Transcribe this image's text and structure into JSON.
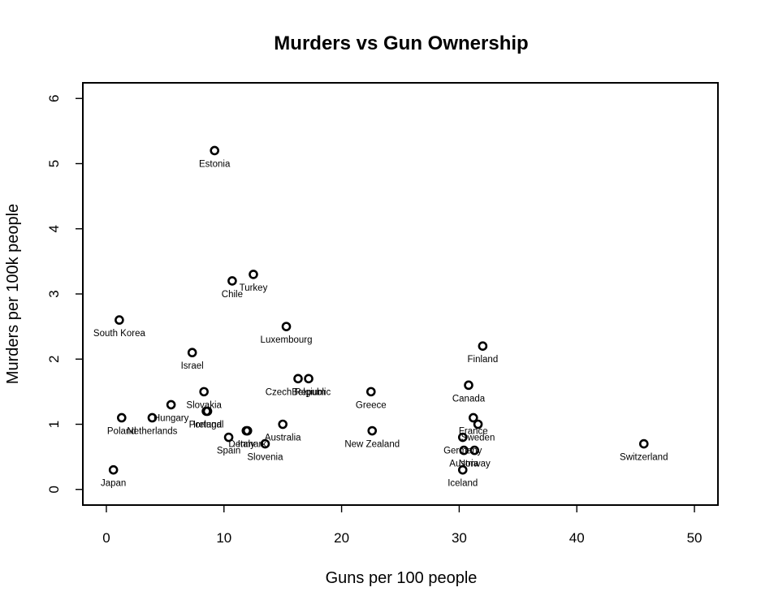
{
  "chart_data": {
    "type": "scatter",
    "title": "Murders vs Gun Ownership",
    "xlabel": "Guns per 100 people",
    "ylabel": "Murders per 100k people",
    "xlim": [
      -2,
      52
    ],
    "ylim": [
      -0.24,
      6.24
    ],
    "xticks": [
      0,
      10,
      20,
      30,
      40,
      50
    ],
    "yticks": [
      0,
      1,
      2,
      3,
      4,
      5,
      6
    ],
    "grid": false,
    "legend": "none",
    "points": [
      {
        "label": "Estonia",
        "x": 9.2,
        "y": 5.2
      },
      {
        "label": "Turkey",
        "x": 12.5,
        "y": 3.3
      },
      {
        "label": "Chile",
        "x": 10.7,
        "y": 3.2
      },
      {
        "label": "South Korea",
        "x": 1.1,
        "y": 2.6
      },
      {
        "label": "Luxembourg",
        "x": 15.3,
        "y": 2.5
      },
      {
        "label": "Finland",
        "x": 32.0,
        "y": 2.2
      },
      {
        "label": "Israel",
        "x": 7.3,
        "y": 2.1
      },
      {
        "label": "Czech Republic",
        "x": 16.3,
        "y": 1.7
      },
      {
        "label": "Belgium",
        "x": 17.2,
        "y": 1.7
      },
      {
        "label": "Canada",
        "x": 30.8,
        "y": 1.6
      },
      {
        "label": "Slovakia",
        "x": 8.3,
        "y": 1.5
      },
      {
        "label": "Greece",
        "x": 22.5,
        "y": 1.5
      },
      {
        "label": "Hungary",
        "x": 5.5,
        "y": 1.3
      },
      {
        "label": "Ireland",
        "x": 8.6,
        "y": 1.2
      },
      {
        "label": "Portugal",
        "x": 8.5,
        "y": 1.2
      },
      {
        "label": "Poland",
        "x": 1.3,
        "y": 1.1
      },
      {
        "label": "Netherlands",
        "x": 3.9,
        "y": 1.1
      },
      {
        "label": "France",
        "x": 31.2,
        "y": 1.1
      },
      {
        "label": "Australia",
        "x": 15.0,
        "y": 1.0
      },
      {
        "label": "Sweden",
        "x": 31.6,
        "y": 1.0
      },
      {
        "label": "Denmark",
        "x": 12.0,
        "y": 0.9
      },
      {
        "label": "Italy",
        "x": 11.9,
        "y": 0.9
      },
      {
        "label": "New Zealand",
        "x": 22.6,
        "y": 0.9
      },
      {
        "label": "Spain",
        "x": 10.4,
        "y": 0.8
      },
      {
        "label": "Germany",
        "x": 30.3,
        "y": 0.8
      },
      {
        "label": "Slovenia",
        "x": 13.5,
        "y": 0.7
      },
      {
        "label": "Switzerland",
        "x": 45.7,
        "y": 0.7
      },
      {
        "label": "Austria",
        "x": 30.4,
        "y": 0.6
      },
      {
        "label": "Norway",
        "x": 31.3,
        "y": 0.6
      },
      {
        "label": "Japan",
        "x": 0.6,
        "y": 0.3
      },
      {
        "label": "Iceland",
        "x": 30.3,
        "y": 0.3
      }
    ]
  }
}
